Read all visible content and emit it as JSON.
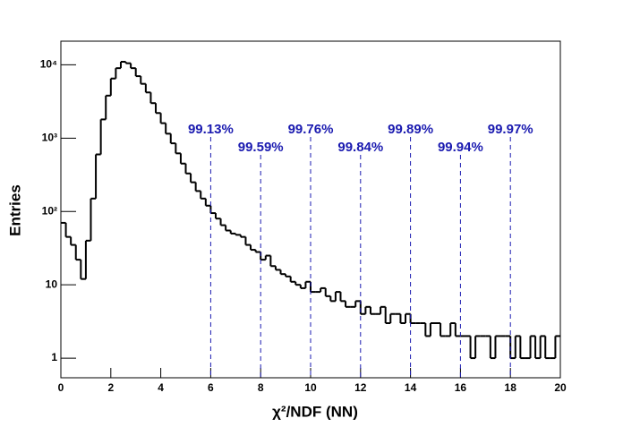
{
  "chart_data": {
    "type": "histogram",
    "xlabel": "χ²/NDF (NN)",
    "ylabel": "Entries",
    "bins": [
      0,
      0.2,
      0.4,
      0.6,
      0.8,
      1,
      1.2,
      1.4,
      1.6,
      1.8,
      2,
      2.2,
      2.4,
      2.6,
      2.8,
      3,
      3.2,
      3.4,
      3.6,
      3.8,
      4,
      4.2,
      4.4,
      4.6,
      4.8,
      5,
      5.2,
      5.4,
      5.6,
      5.8,
      6,
      6.2,
      6.4,
      6.6,
      6.8,
      7,
      7.2,
      7.4,
      7.6,
      7.8,
      8,
      8.2,
      8.4,
      8.6,
      8.8,
      9,
      9.2,
      9.4,
      9.6,
      9.8,
      10,
      10.2,
      10.4,
      10.6,
      10.8,
      11,
      11.2,
      11.4,
      11.6,
      11.8,
      12,
      12.2,
      12.4,
      12.6,
      12.8,
      13,
      13.2,
      13.4,
      13.6,
      13.8,
      14,
      14.2,
      14.4,
      14.6,
      14.8,
      15,
      15.2,
      15.4,
      15.6,
      15.8,
      16,
      16.2,
      16.4,
      16.6,
      16.8,
      17,
      17.2,
      17.4,
      17.6,
      17.8,
      18,
      18.2,
      18.4,
      18.6,
      18.8,
      19,
      19.2,
      19.4,
      19.6,
      19.8,
      20
    ],
    "values": [
      70,
      45,
      35,
      22,
      12,
      40,
      150,
      600,
      1800,
      3800,
      6500,
      9000,
      11000,
      10500,
      9000,
      7000,
      5500,
      4200,
      3000,
      2200,
      1600,
      1150,
      850,
      620,
      450,
      330,
      250,
      190,
      150,
      120,
      95,
      80,
      65,
      55,
      50,
      48,
      45,
      35,
      30,
      28,
      22,
      25,
      18,
      16,
      14,
      13,
      11,
      10,
      9,
      11,
      8,
      8,
      9,
      7,
      6,
      8,
      6,
      5,
      5,
      6,
      4,
      5,
      4,
      4,
      5,
      3,
      4,
      4,
      3,
      4,
      3,
      3,
      3,
      2,
      3,
      3,
      2,
      2,
      3,
      2,
      2,
      2,
      1,
      2,
      2,
      2,
      1,
      2,
      2,
      2,
      1,
      2,
      1,
      1,
      2,
      1,
      2,
      1,
      1,
      2
    ],
    "color": "#000000",
    "log_y": true,
    "xlim": [
      0,
      20
    ],
    "ylim": [
      0.54,
      21000
    ],
    "xticks": [
      0,
      2,
      4,
      6,
      8,
      10,
      12,
      14,
      16,
      18,
      20
    ],
    "yticks": [
      1,
      10,
      {
        "value": 100,
        "label": "10²"
      },
      {
        "value": 1000,
        "label": "10³"
      },
      {
        "value": 10000,
        "label": "10⁴"
      }
    ],
    "annotation_color": "#1a1ab0",
    "annotations": [
      {
        "x": 6,
        "text": "99.13%"
      },
      {
        "x": 8,
        "text": "99.59%"
      },
      {
        "x": 10,
        "text": "99.76%"
      },
      {
        "x": 12,
        "text": "99.84%"
      },
      {
        "x": 14,
        "text": "99.89%"
      },
      {
        "x": 16,
        "text": "99.94%"
      },
      {
        "x": 18,
        "text": "99.97%"
      }
    ]
  }
}
